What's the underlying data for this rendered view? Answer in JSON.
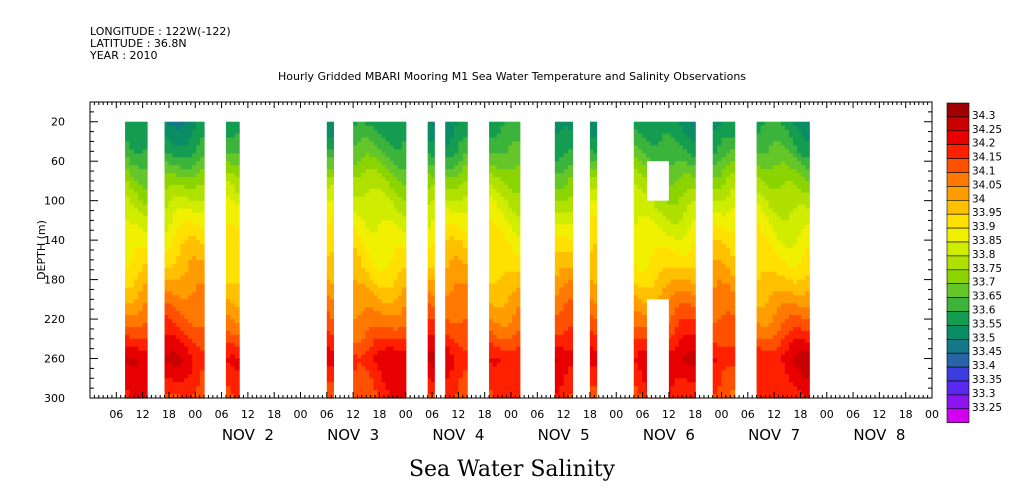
{
  "header": {
    "longitude": "LONGITUDE : 122W(-122)",
    "latitude": "LATITUDE : 36.8N",
    "year": "YEAR : 2010"
  },
  "footer": {
    "variable_title": "Sea Water Salinity"
  },
  "chart_data": {
    "type": "heatmap",
    "title": "Hourly Gridded MBARI Mooring M1 Sea Water Temperature and Salinity Observations",
    "ylabel": "DEPTH (m)",
    "xlabel": "",
    "x_units": "hours since Nov 1 2010 00:00",
    "xlim": [
      0,
      192
    ],
    "ylim": [
      300,
      0
    ],
    "yticks": [
      20,
      60,
      100,
      140,
      180,
      220,
      260,
      300
    ],
    "x_hour_labels": [
      "06",
      "12",
      "18",
      "00",
      "06",
      "12",
      "18",
      "00",
      "06",
      "12",
      "18",
      "00",
      "06",
      "12",
      "18",
      "00",
      "06",
      "12",
      "18",
      "00",
      "06",
      "12",
      "18",
      "00",
      "06",
      "12",
      "18",
      "00",
      "06",
      "12",
      "18",
      "00"
    ],
    "day_labels": [
      {
        "label": "NOV  2",
        "hour": 36
      },
      {
        "label": "NOV  3",
        "hour": 60
      },
      {
        "label": "NOV  4",
        "hour": 84
      },
      {
        "label": "NOV  5",
        "hour": 108
      },
      {
        "label": "NOV  6",
        "hour": 132
      },
      {
        "label": "NOV  7",
        "hour": 156
      },
      {
        "label": "NOV  8",
        "hour": 180
      }
    ],
    "colorbar": {
      "levels": [
        34.3,
        34.25,
        34.2,
        34.15,
        34.1,
        34.05,
        34,
        33.95,
        33.9,
        33.85,
        33.8,
        33.75,
        33.7,
        33.65,
        33.6,
        33.55,
        33.5,
        33.45,
        33.4,
        33.35,
        33.3,
        33.25
      ],
      "colors": [
        "#a00000",
        "#c80000",
        "#e80000",
        "#ff2000",
        "#ff5000",
        "#ff7800",
        "#ff9c00",
        "#ffc000",
        "#ffe000",
        "#f0f000",
        "#d0ec00",
        "#b0e000",
        "#8cd400",
        "#64c628",
        "#3cb43c",
        "#149c50",
        "#0a8c64",
        "#147888",
        "#2864a8",
        "#3c3ce0",
        "#5a28f0",
        "#8c14f0",
        "#d200f0"
      ]
    },
    "data_segments": [
      {
        "start": 8,
        "end": 13
      },
      {
        "start": 17,
        "end": 26
      },
      {
        "start": 31,
        "end": 34
      },
      {
        "start": 54,
        "end": 55.5
      },
      {
        "start": 60,
        "end": 72
      },
      {
        "start": 77,
        "end": 78.5
      },
      {
        "start": 81,
        "end": 86
      },
      {
        "start": 91,
        "end": 98
      },
      {
        "start": 106,
        "end": 110
      },
      {
        "start": 114,
        "end": 115.5
      },
      {
        "start": 124,
        "end": 138
      },
      {
        "start": 142,
        "end": 147
      },
      {
        "start": 152,
        "end": 164
      }
    ],
    "gaps": [
      {
        "start": 127,
        "end": 132,
        "top": 60,
        "bottom": 100
      },
      {
        "start": 127,
        "end": 132,
        "top": 200,
        "bottom": 300
      }
    ],
    "profile_depths": [
      20,
      50,
      80,
      110,
      140,
      170,
      200,
      230,
      260,
      290,
      300
    ],
    "profile_values": [
      33.55,
      33.62,
      33.74,
      33.83,
      33.9,
      33.96,
      34.04,
      34.12,
      34.22,
      34.17,
      34.15
    ]
  }
}
